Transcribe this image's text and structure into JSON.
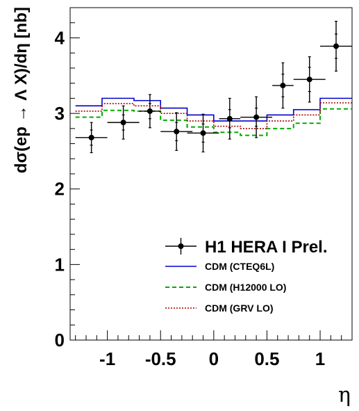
{
  "chart_data": {
    "type": "line",
    "title": "",
    "xlabel": "η",
    "ylabel": "dσ(ep → Λ X)/dη [nb]",
    "xlim": [
      -1.35,
      1.3
    ],
    "ylim": [
      0,
      4.4
    ],
    "x_ticks": [
      -1,
      -0.5,
      0,
      0.5,
      1
    ],
    "x_tick_labels": [
      "-1",
      "-0.5",
      "0",
      "0.5",
      "1"
    ],
    "y_ticks": [
      0,
      1,
      2,
      3,
      4
    ],
    "y_tick_labels": [
      "0",
      "1",
      "2",
      "3",
      "4"
    ],
    "grid": false,
    "legend_position": "bottom-right",
    "bin_edges": [
      -1.3,
      -1.05,
      -0.75,
      -0.5,
      -0.25,
      0.0,
      0.25,
      0.5,
      0.75,
      1.0,
      1.3
    ],
    "data": {
      "name": "H1 HERA I Prel.",
      "color": "#000000",
      "x": [
        -1.15,
        -0.85,
        -0.6,
        -0.35,
        -0.1,
        0.15,
        0.4,
        0.65,
        0.9,
        1.15
      ],
      "xerr": [
        0.15,
        0.15,
        0.1,
        0.15,
        0.15,
        0.1,
        0.15,
        0.1,
        0.15,
        0.15
      ],
      "y": [
        2.68,
        2.88,
        3.03,
        2.76,
        2.74,
        2.93,
        2.95,
        3.37,
        3.45,
        3.89
      ],
      "yerr_stat": [
        0.1,
        0.1,
        0.1,
        0.12,
        0.12,
        0.12,
        0.12,
        0.15,
        0.16,
        0.16
      ],
      "yerr_tot": [
        0.2,
        0.22,
        0.22,
        0.25,
        0.25,
        0.27,
        0.27,
        0.3,
        0.3,
        0.33
      ]
    },
    "series": [
      {
        "name": "CDM (CTEQ6L)",
        "color": "#0000cc",
        "style": "solid",
        "values": [
          3.1,
          3.2,
          3.17,
          3.07,
          2.98,
          2.9,
          2.9,
          2.98,
          3.05,
          3.2
        ]
      },
      {
        "name": "CDM (H12000 LO)",
        "color": "#00aa00",
        "style": "dashed",
        "values": [
          2.95,
          3.04,
          3.03,
          2.91,
          2.82,
          2.75,
          2.71,
          2.8,
          2.87,
          3.06
        ]
      },
      {
        "name": "CDM (GRV LO)",
        "color": "#aa0000",
        "style": "dotted",
        "values": [
          3.03,
          3.13,
          3.1,
          3.0,
          2.9,
          2.83,
          2.8,
          2.9,
          2.98,
          3.14
        ]
      }
    ]
  }
}
